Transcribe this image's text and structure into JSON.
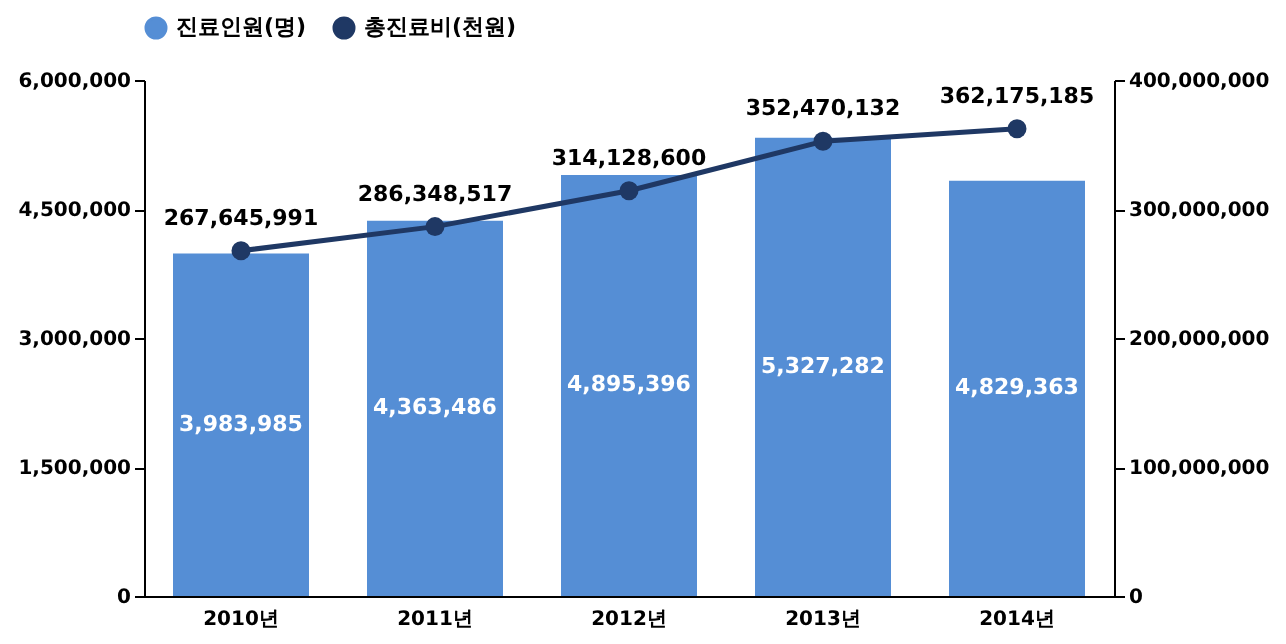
{
  "chart_data": {
    "type": "bar",
    "categories": [
      "2010년",
      "2011년",
      "2012년",
      "2013년",
      "2014년"
    ],
    "series": [
      {
        "name": "진료인원(명)",
        "color": "#558ed5",
        "values": [
          3983985,
          4363486,
          4895396,
          5327282,
          4829363
        ],
        "value_labels": [
          "3,983,985",
          "4,363,486",
          "4,895,396",
          "5,327,282",
          "4,829,363"
        ]
      },
      {
        "name": "총진료비(천원)",
        "type": "line",
        "axis": "y2",
        "color": "#1f3864",
        "values": [
          267645991,
          286348517,
          314128600,
          352470132,
          362175185
        ],
        "value_labels": [
          "267,645,991",
          "286,348,517",
          "314,128,600",
          "352,470,132",
          "362,175,185"
        ]
      }
    ],
    "ylim": [
      0,
      6000000
    ],
    "yticks": [
      0,
      {
        "value": 1500000,
        "label": "1,500,000"
      },
      {
        "value": 3000000,
        "label": "3,000,000"
      },
      {
        "value": 4500000,
        "label": "4,500,000"
      },
      {
        "value": 6000000,
        "label": "6,000,000"
      }
    ],
    "y2lim": [
      0,
      400000000
    ],
    "y2ticks": [
      0,
      {
        "value": 100000000,
        "label": "100,000,000"
      },
      {
        "value": 200000000,
        "label": "200,000,000"
      },
      {
        "value": 300000000,
        "label": "300,000,000"
      },
      {
        "value": 400000000,
        "label": "400,000,000"
      }
    ],
    "marker": "circle",
    "legend": "top",
    "grid": false
  }
}
